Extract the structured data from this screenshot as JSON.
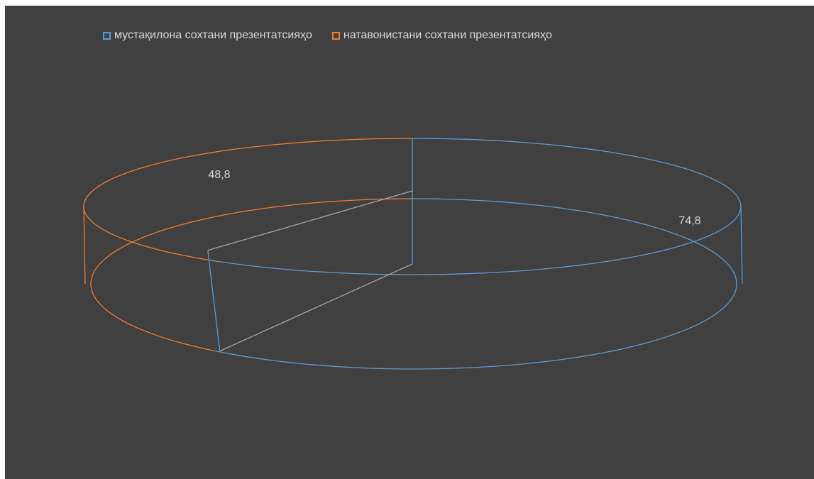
{
  "chart_data": {
    "type": "pie",
    "style": "3d-outline",
    "title": "",
    "categories": [
      "мустақилона сохтани презентатсияҳо",
      "натавонистани сохтани презентатсияҳо"
    ],
    "values": [
      74.8,
      48.8
    ],
    "value_labels": [
      "74,8",
      "48,8"
    ],
    "colors": [
      "#5b9bd5",
      "#ed7d31"
    ],
    "background": "#404040",
    "legend_position": "top"
  }
}
